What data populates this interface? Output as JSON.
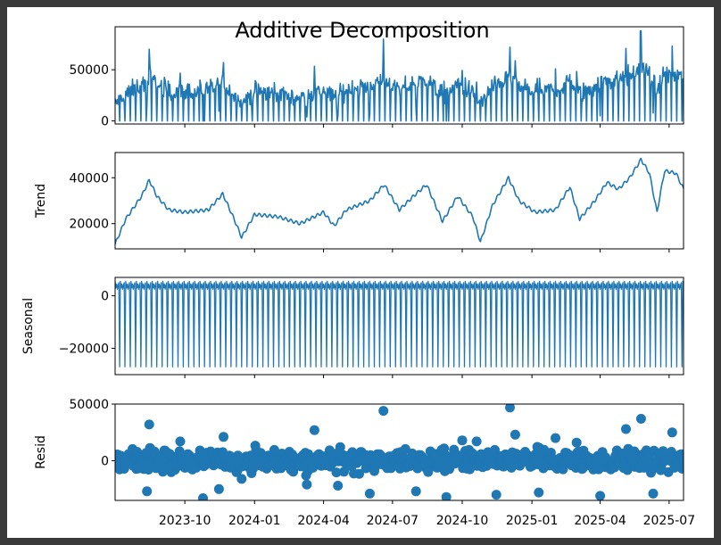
{
  "chart_data": {
    "title": "Additive Decomposition",
    "type": "line",
    "x_range": [
      "2023-07-01",
      "2025-07-20"
    ],
    "x_tick_labels": [
      "2023-10",
      "2024-01",
      "2024-04",
      "2024-07",
      "2024-10",
      "2025-01",
      "2025-04",
      "2025-07"
    ],
    "x_tick_dates": [
      "2023-10-01",
      "2024-01-01",
      "2024-04-01",
      "2024-07-01",
      "2024-10-01",
      "2025-01-01",
      "2025-04-01",
      "2025-07-01"
    ],
    "grid": false,
    "panels": [
      {
        "id": "observed",
        "ylabel": "",
        "type": "line",
        "ylim": [
          -3000,
          92000
        ],
        "yticks": [
          0,
          50000
        ],
        "ytick_labels": [
          "0",
          "50000"
        ],
        "summary": "daily series oscillating between 0 and roughly 20000-50000 with weekly drops to 0 and occasional spikes",
        "spikes": [
          {
            "date": "2023-08-15",
            "value": 70000
          },
          {
            "date": "2023-11-21",
            "value": 57000
          },
          {
            "date": "2024-06-19",
            "value": 80000
          },
          {
            "date": "2024-12-03",
            "value": 72000
          },
          {
            "date": "2025-05-24",
            "value": 88000
          }
        ]
      },
      {
        "id": "trend",
        "ylabel": "Trend",
        "type": "line",
        "ylim": [
          9000,
          51000
        ],
        "yticks": [
          20000,
          40000
        ],
        "ytick_labels": [
          "20000",
          "40000"
        ],
        "points": [
          [
            "2023-07-01",
            11000
          ],
          [
            "2023-07-15",
            22000
          ],
          [
            "2023-08-05",
            32000
          ],
          [
            "2023-08-15",
            39000
          ],
          [
            "2023-08-25",
            32000
          ],
          [
            "2023-09-10",
            26000
          ],
          [
            "2023-10-01",
            25000
          ],
          [
            "2023-11-01",
            26000
          ],
          [
            "2023-11-20",
            33000
          ],
          [
            "2023-12-05",
            22000
          ],
          [
            "2023-12-15",
            14000
          ],
          [
            "2024-01-01",
            24000
          ],
          [
            "2024-02-01",
            23000
          ],
          [
            "2024-03-01",
            20000
          ],
          [
            "2024-04-01",
            25000
          ],
          [
            "2024-04-15",
            19000
          ],
          [
            "2024-05-01",
            26000
          ],
          [
            "2024-06-01",
            30000
          ],
          [
            "2024-06-20",
            37000
          ],
          [
            "2024-07-10",
            26000
          ],
          [
            "2024-08-01",
            33000
          ],
          [
            "2024-08-15",
            37000
          ],
          [
            "2024-09-05",
            21000
          ],
          [
            "2024-09-25",
            32000
          ],
          [
            "2024-10-15",
            23000
          ],
          [
            "2024-10-25",
            12000
          ],
          [
            "2024-11-10",
            28000
          ],
          [
            "2024-12-01",
            40000
          ],
          [
            "2024-12-15",
            30000
          ],
          [
            "2025-01-05",
            25000
          ],
          [
            "2025-02-01",
            26000
          ],
          [
            "2025-02-20",
            36000
          ],
          [
            "2025-03-05",
            22000
          ],
          [
            "2025-03-25",
            30000
          ],
          [
            "2025-04-10",
            38000
          ],
          [
            "2025-04-25",
            35000
          ],
          [
            "2025-05-10",
            40000
          ],
          [
            "2025-05-25",
            48000
          ],
          [
            "2025-06-05",
            42000
          ],
          [
            "2025-06-15",
            25000
          ],
          [
            "2025-06-25",
            43000
          ],
          [
            "2025-07-10",
            42000
          ],
          [
            "2025-07-20",
            35000
          ]
        ]
      },
      {
        "id": "seasonal",
        "ylabel": "Seasonal",
        "type": "line",
        "ylim": [
          -30000,
          7000
        ],
        "yticks": [
          -20000,
          0
        ],
        "ytick_labels": [
          "−20000",
          "0"
        ],
        "period_days": 7,
        "pattern": [
          5500,
          3000,
          4500,
          2500,
          4000,
          5000,
          -27000
        ]
      },
      {
        "id": "resid",
        "ylabel": "Resid",
        "type": "scatter",
        "ylim": [
          -35000,
          50000
        ],
        "yticks": [
          0,
          50000
        ],
        "ytick_labels": [
          "0",
          "50000"
        ],
        "summary": "residuals scattered around 0, mostly within ±10000",
        "outliers": [
          {
            "date": "2023-08-15",
            "value": 32000
          },
          {
            "date": "2023-08-12",
            "value": -27000
          },
          {
            "date": "2023-09-25",
            "value": 17000
          },
          {
            "date": "2023-10-25",
            "value": -33000
          },
          {
            "date": "2023-11-21",
            "value": 21000
          },
          {
            "date": "2023-11-15",
            "value": -25000
          },
          {
            "date": "2023-12-15",
            "value": -16000
          },
          {
            "date": "2024-03-20",
            "value": 27000
          },
          {
            "date": "2024-03-10",
            "value": -21000
          },
          {
            "date": "2024-04-20",
            "value": -22000
          },
          {
            "date": "2024-06-19",
            "value": 44000
          },
          {
            "date": "2024-06-01",
            "value": -29000
          },
          {
            "date": "2024-08-01",
            "value": -27000
          },
          {
            "date": "2024-09-10",
            "value": -32000
          },
          {
            "date": "2024-10-01",
            "value": 18000
          },
          {
            "date": "2024-10-20",
            "value": 17000
          },
          {
            "date": "2024-11-15",
            "value": -30000
          },
          {
            "date": "2024-12-03",
            "value": 47000
          },
          {
            "date": "2024-12-10",
            "value": 23000
          },
          {
            "date": "2025-01-10",
            "value": -28000
          },
          {
            "date": "2025-02-01",
            "value": 20000
          },
          {
            "date": "2025-03-01",
            "value": 16000
          },
          {
            "date": "2025-04-01",
            "value": -31000
          },
          {
            "date": "2025-05-05",
            "value": 28000
          },
          {
            "date": "2025-05-25",
            "value": 37000
          },
          {
            "date": "2025-06-10",
            "value": -29000
          },
          {
            "date": "2025-07-05",
            "value": 25000
          }
        ]
      }
    ]
  },
  "colors": {
    "series": "#1f77b4",
    "background": "#ffffff",
    "frame": "#3a3a3a"
  }
}
